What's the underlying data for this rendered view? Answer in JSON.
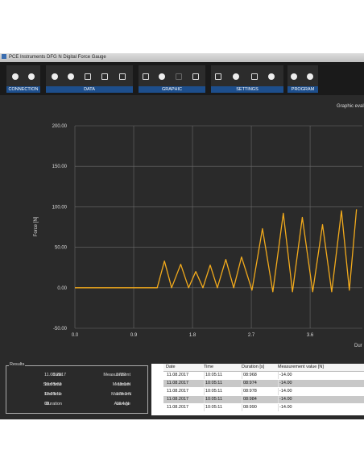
{
  "window": {
    "title": "PCE Instruments DFG N Digital Force Gauge"
  },
  "toolbar": {
    "groups": [
      "CONNECTION",
      "DATA",
      "GRAPHIC",
      "SETTINGS",
      "PROGRAM"
    ]
  },
  "chart_data": {
    "type": "line",
    "title": "Graphic eval",
    "ylabel": "Force [N]",
    "xlabel": "Dur",
    "x": [
      0,
      1.26,
      1.37,
      1.48,
      1.62,
      1.74,
      1.85,
      1.96,
      2.07,
      2.18,
      2.31,
      2.43,
      2.55,
      2.71,
      2.87,
      3.03,
      3.19,
      3.33,
      3.48,
      3.64,
      3.79,
      3.93,
      4.08,
      4.2,
      4.31
    ],
    "values": [
      0,
      0,
      33,
      0,
      29,
      0,
      20,
      0,
      28,
      0,
      35,
      0,
      38,
      -3,
      73,
      -5,
      92,
      -5,
      87,
      -5,
      78,
      -5,
      95,
      -3,
      97
    ],
    "color": "#f2aa1c",
    "xlim": [
      0,
      4.4
    ],
    "xticks": [
      {
        "value": 0,
        "label": "0.0"
      },
      0.9,
      1.8,
      2.7,
      3.6
    ],
    "ylim": [
      -50,
      200
    ],
    "yticks": [
      {
        "value": -50,
        "label": "-50.00"
      },
      {
        "value": 0,
        "label": "0.00"
      },
      {
        "value": 50,
        "label": "50.00"
      },
      {
        "value": 100,
        "label": "100.00"
      },
      {
        "value": 150,
        "label": "150.00"
      },
      {
        "value": 200,
        "label": "200.00"
      }
    ],
    "grid": true
  },
  "results": {
    "title": "Results",
    "fields": [
      {
        "label": "Date",
        "value": "11.08.2017"
      },
      {
        "label": "Start time",
        "value": "10:05:03"
      },
      {
        "label": "End time",
        "value": "10:05:11"
      },
      {
        "label": "Duration",
        "value": "08"
      },
      {
        "label": "Measurement",
        "value": "1722"
      },
      {
        "label": "Minimum",
        "value": "-19.0 N"
      },
      {
        "label": "Maximum",
        "value": "179.0 N"
      },
      {
        "label": "Average",
        "value": "18.4 N"
      }
    ]
  },
  "table": {
    "header": [
      "Date",
      "Time",
      "Duration [s]",
      "Measurement value [N]"
    ],
    "rows": [
      [
        "11.08.2017",
        "10:05:11",
        "08:968",
        "-14.00"
      ],
      [
        "11.08.2017",
        "10:05:11",
        "08:974",
        "-14.00"
      ],
      [
        "11.08.2017",
        "10:05:11",
        "08:978",
        "-14.00"
      ],
      [
        "11.08.2017",
        "10:05:11",
        "08:984",
        "-14.00"
      ],
      [
        "11.08.2017",
        "10:05:11",
        "08:990",
        "-14.00"
      ]
    ]
  }
}
